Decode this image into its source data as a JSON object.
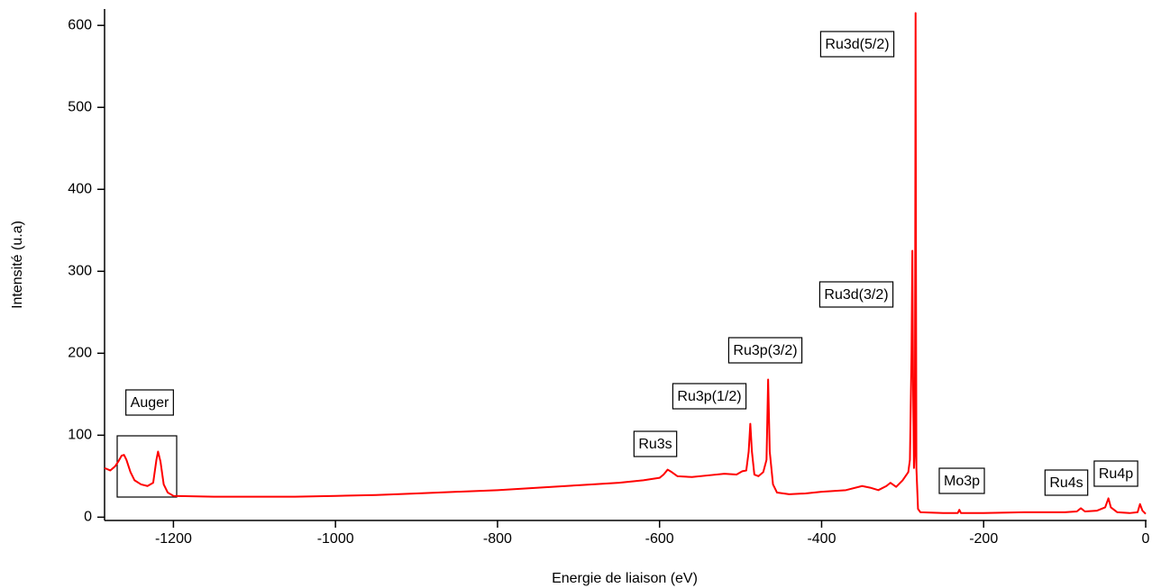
{
  "chart_data": {
    "type": "line",
    "xlabel": "Energie de liaison (eV)",
    "ylabel": "Intensité (u.a)",
    "xlim": [
      -1285,
      0
    ],
    "ylim": [
      -4,
      620
    ],
    "xticks": [
      -1200,
      -1000,
      -800,
      -600,
      -400,
      -200,
      0
    ],
    "yticks": [
      0,
      100,
      200,
      300,
      400,
      500,
      600
    ],
    "annotations": [
      "Auger",
      "Ru3s",
      "Ru3p(1/2)",
      "Ru3p(3/2)",
      "Ru3d(3/2)",
      "Ru3d(5/2)",
      "Mo3p",
      "Ru4s",
      "Ru4p"
    ],
    "series": [
      {
        "color": "#ff0000",
        "x": [
          -1285,
          -1278,
          -1272,
          -1268,
          -1264,
          -1261,
          -1258,
          -1253,
          -1248,
          -1240,
          -1232,
          -1225,
          -1221,
          -1219,
          -1216,
          -1212,
          -1207,
          -1200,
          -1150,
          -1100,
          -1050,
          -1000,
          -950,
          -900,
          -850,
          -800,
          -750,
          -700,
          -650,
          -620,
          -600,
          -595,
          -590,
          -585,
          -578,
          -560,
          -540,
          -520,
          -505,
          -498,
          -493,
          -490,
          -488,
          -486,
          -483,
          -478,
          -472,
          -468,
          -466,
          -464,
          -460,
          -455,
          -440,
          -420,
          -400,
          -370,
          -350,
          -340,
          -330,
          -320,
          -315,
          -308,
          -300,
          -293,
          -291,
          -289,
          -288,
          -287,
          -286,
          -285,
          -284.5,
          -284,
          -283.5,
          -283,
          -281,
          -278,
          -250,
          -232,
          -230,
          -228,
          -200,
          -150,
          -100,
          -85,
          -80,
          -75,
          -60,
          -50,
          -46,
          -43,
          -35,
          -20,
          -10,
          -7,
          -4,
          0
        ],
        "values": [
          60,
          57,
          62,
          68,
          75,
          76,
          70,
          55,
          45,
          40,
          38,
          42,
          70,
          80,
          68,
          40,
          30,
          26,
          25,
          25,
          25,
          26,
          27,
          29,
          31,
          33,
          36,
          39,
          42,
          45,
          48,
          52,
          58,
          55,
          50,
          49,
          51,
          53,
          52,
          56,
          57,
          80,
          114,
          80,
          52,
          50,
          55,
          70,
          168,
          80,
          40,
          30,
          28,
          29,
          31,
          33,
          38,
          36,
          33,
          38,
          42,
          37,
          45,
          55,
          70,
          200,
          325,
          150,
          60,
          80,
          300,
          615,
          300,
          60,
          10,
          6,
          5,
          5,
          9,
          5,
          5,
          6,
          6,
          7,
          11,
          7,
          8,
          12,
          23,
          12,
          6,
          5,
          6,
          16,
          8,
          4
        ]
      }
    ]
  }
}
